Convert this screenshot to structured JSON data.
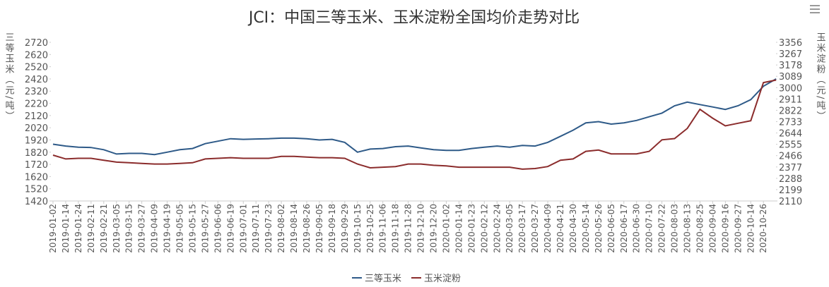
{
  "chart_data": {
    "type": "line",
    "title": "JCI：中国三等玉米、玉米淀粉全国均价走势对比",
    "y_label": "三等玉米（元/吨）",
    "y2_label": "玉米淀粉（元/吨）",
    "categories": [
      "2019-01-02",
      "2019-01-14",
      "2019-01-24",
      "2019-02-11",
      "2019-02-21",
      "2019-03-05",
      "2019-03-15",
      "2019-03-27",
      "2019-04-09",
      "2019-04-19",
      "2019-05-05",
      "2019-05-15",
      "2019-05-27",
      "2019-06-06",
      "2019-06-19",
      "2019-07-01",
      "2019-07-11",
      "2019-07-23",
      "2019-08-02",
      "2019-08-14",
      "2019-08-26",
      "2019-09-05",
      "2019-09-18",
      "2019-09-29",
      "2019-10-15",
      "2019-10-25",
      "2019-11-06",
      "2019-11-18",
      "2019-11-28",
      "2019-12-10",
      "2019-12-20",
      "2020-01-02",
      "2020-01-14",
      "2020-01-23",
      "2020-02-12",
      "2020-02-24",
      "2020-03-05",
      "2020-03-17",
      "2020-03-27",
      "2020-04-09",
      "2020-04-21",
      "2020-04-30",
      "2020-05-14",
      "2020-05-26",
      "2020-06-05",
      "2020-06-17",
      "2020-06-30",
      "2020-07-10",
      "2020-07-22",
      "2020-08-03",
      "2020-08-13",
      "2020-08-25",
      "2020-09-04",
      "2020-09-16",
      "2020-09-27",
      "2020-10-14",
      "2020-10-26",
      null
    ],
    "series": [
      {
        "name": "三等玉米",
        "color": "#2e5a88",
        "values": [
          1885,
          1870,
          1860,
          1858,
          1840,
          1805,
          1810,
          1810,
          1800,
          1820,
          1840,
          1850,
          1890,
          1910,
          1930,
          1925,
          1928,
          1930,
          1935,
          1935,
          1930,
          1920,
          1925,
          1900,
          1820,
          1845,
          1850,
          1865,
          1870,
          1855,
          1840,
          1835,
          1835,
          1850,
          1860,
          1870,
          1860,
          1875,
          1870,
          1900,
          1950,
          2000,
          2060,
          2070,
          2050,
          2060,
          2080,
          2110,
          2140,
          2200,
          2230,
          2210,
          2190,
          2170,
          2200,
          2250,
          2360,
          2420
        ]
      },
      {
        "name": "玉米淀粉",
        "color": "#8b2c2c",
        "axis": "y2",
        "values": [
          2470,
          2440,
          2445,
          2445,
          2430,
          2415,
          2410,
          2405,
          2400,
          2400,
          2405,
          2410,
          2440,
          2445,
          2450,
          2445,
          2445,
          2445,
          2460,
          2460,
          2455,
          2450,
          2450,
          2445,
          2400,
          2370,
          2375,
          2380,
          2400,
          2400,
          2390,
          2385,
          2375,
          2375,
          2375,
          2375,
          2375,
          2360,
          2365,
          2380,
          2430,
          2440,
          2500,
          2510,
          2480,
          2480,
          2480,
          2500,
          2590,
          2600,
          2680,
          2830,
          2760,
          2700,
          2720,
          2740,
          3040,
          3060
        ]
      }
    ],
    "ylim": [
      1420,
      2720
    ],
    "yticks": [
      1420,
      1520,
      1620,
      1720,
      1820,
      1920,
      2020,
      2120,
      2220,
      2320,
      2420,
      2520,
      2620,
      2720
    ],
    "y2lim": [
      2110,
      3356
    ],
    "y2ticks": [
      2110,
      2199,
      2288,
      2377,
      2466,
      2555,
      2644,
      2733,
      2822,
      2911,
      3000,
      3089,
      3178,
      3267,
      3356
    ],
    "grid": false,
    "legend": "bottom"
  }
}
